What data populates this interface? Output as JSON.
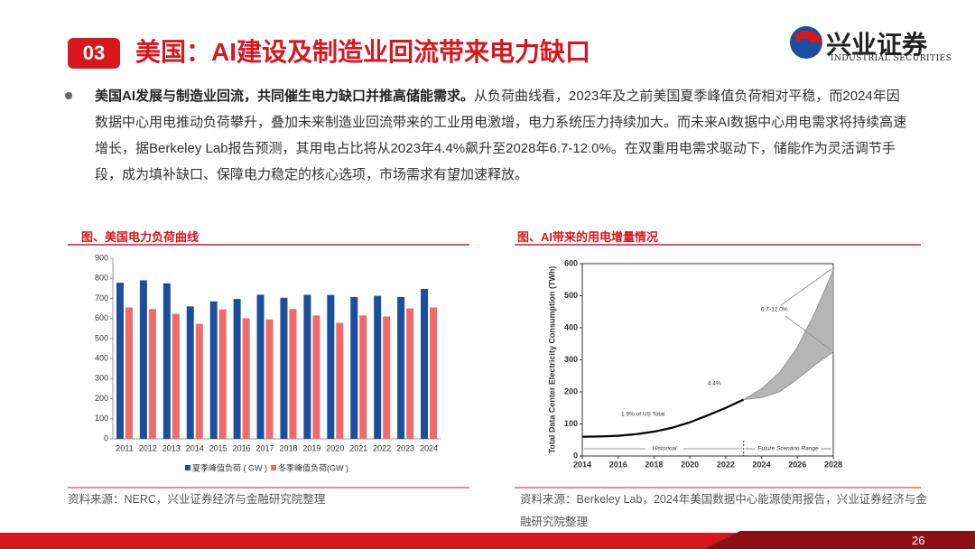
{
  "header": {
    "number": "03",
    "title": "美国：AI建设及制造业回流带来电力缺口",
    "logo": "兴业证券",
    "logo_en": "INDUSTRIAL SECURITIES"
  },
  "bullet": {
    "bold": "美国AI发展与制造业回流，共同催生电力缺口并推高储能需求。",
    "text": "从负荷曲线看，2023年及之前美国夏季峰值负荷相对平稳，而2024年因数据中心用电推动负荷攀升，叠加未来制造业回流带来的工业用电激增，电力系统压力持续加大。而未来AI数据中心用电需求将持续高速增长，据Berkeley Lab报告预测，其用电占比将从2023年4.4%飙升至2028年6.7-12.0%。在双重用电需求驱动下，储能作为灵活调节手段，成为填补缺口、保障电力稳定的核心选项，市场需求有望加速释放。"
  },
  "chart_data": [
    {
      "type": "bar",
      "title": "图、美国电力负荷曲线",
      "source": "资料来源：NERC，兴业证券经济与金融研究院整理",
      "categories": [
        "2011",
        "2012",
        "2013",
        "2014",
        "2015",
        "2016",
        "2017",
        "2018",
        "2019",
        "2020",
        "2021",
        "2022",
        "2023",
        "2024"
      ],
      "series": [
        {
          "name": "夏季峰值负荷 ( GW )",
          "color": "#1b4f9c",
          "values": [
            778,
            790,
            775,
            660,
            685,
            697,
            718,
            703,
            718,
            717,
            707,
            713,
            707,
            747
          ]
        },
        {
          "name": "冬季峰值负荷(GW )",
          "color": "#f06a6a",
          "values": [
            655,
            647,
            623,
            573,
            645,
            601,
            595,
            647,
            615,
            578,
            615,
            610,
            650,
            655
          ]
        }
      ],
      "ylim": [
        0,
        900
      ],
      "yticks": [
        0,
        100,
        200,
        300,
        400,
        500,
        600,
        700,
        800,
        900
      ],
      "legend": "bottom"
    },
    {
      "type": "line",
      "title": "图、AI带来的用电增量情况",
      "source": "资料来源：Berkeley Lab，2024年美国数据中心能源使用报告，兴业证券经济与金融研究院整理",
      "ylabel": "Total Data Center Electricity Consumption (TWh)",
      "x": [
        2014,
        2015,
        2016,
        2017,
        2018,
        2019,
        2020,
        2021,
        2022,
        2023,
        2024,
        2025,
        2026,
        2027,
        2028
      ],
      "series": [
        {
          "color": "#000000",
          "values": [
            60,
            61,
            63,
            68,
            76,
            88,
            105,
            127,
            150,
            176,
            null,
            null,
            null,
            null,
            null
          ]
        }
      ],
      "band": {
        "color": "#b5b5b5",
        "upper": [
          null,
          null,
          null,
          null,
          null,
          null,
          null,
          null,
          null,
          176,
          210,
          260,
          340,
          450,
          580
        ],
        "lower": [
          null,
          null,
          null,
          null,
          null,
          null,
          null,
          null,
          null,
          176,
          182,
          200,
          240,
          285,
          325
        ]
      },
      "annotations": [
        "1.9% of US Total",
        "4.4%",
        "6.7-12.0%",
        "Historical",
        "Future Scenario Range"
      ],
      "xlim": [
        2014,
        2028
      ],
      "xticks": [
        2014,
        2016,
        2018,
        2020,
        2022,
        2024,
        2026,
        2028
      ],
      "ylim": [
        0,
        600
      ],
      "yticks": [
        0,
        100,
        200,
        300,
        400,
        500,
        600
      ]
    }
  ],
  "page": "26"
}
